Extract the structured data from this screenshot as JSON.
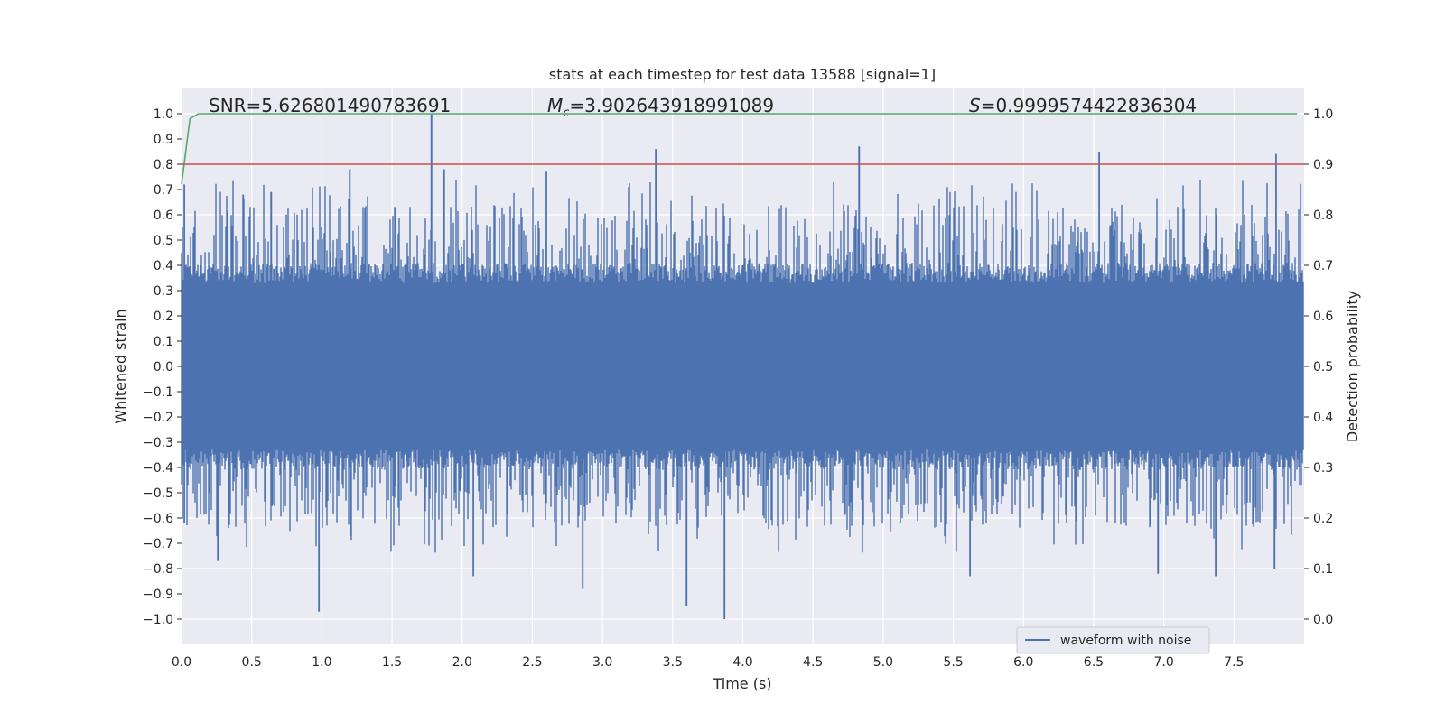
{
  "chart_data": {
    "type": "line",
    "title": "stats at each timestep for test data 13588 [signal=1]",
    "xlabel": "Time (s)",
    "ylabel": "Whitened strain",
    "y2label": "Detection probability",
    "xlim": [
      0.0,
      8.0
    ],
    "ylim": [
      -1.1,
      1.1
    ],
    "y2lim": [
      -0.05,
      1.05
    ],
    "x_ticks": [
      "0.0",
      "0.5",
      "1.0",
      "1.5",
      "2.0",
      "2.5",
      "3.0",
      "3.5",
      "4.0",
      "4.5",
      "5.0",
      "5.5",
      "6.0",
      "6.5",
      "7.0",
      "7.5"
    ],
    "y_ticks": [
      "1.0",
      "0.9",
      "0.8",
      "0.7",
      "0.6",
      "0.5",
      "0.4",
      "0.3",
      "0.2",
      "0.1",
      "0.0",
      "−0.1",
      "−0.2",
      "−0.3",
      "−0.4",
      "−0.5",
      "−0.6",
      "−0.7",
      "−0.8",
      "−0.9",
      "−1.0"
    ],
    "y2_ticks": [
      "1.0",
      "0.9",
      "0.8",
      "0.7",
      "0.6",
      "0.5",
      "0.4",
      "0.3",
      "0.2",
      "0.1",
      "0.0"
    ],
    "grid": true,
    "annotations": {
      "snr": "SNR=5.626801490783691",
      "mc_symbol": "M",
      "mc_sub": "c",
      "mc_value": "=3.902643918991089",
      "s_symbol": "S",
      "s_value": "=0.9999574422836304"
    },
    "legend": {
      "label": "waveform with noise",
      "placement": "lower-right"
    },
    "series": [
      {
        "name": "waveform with noise",
        "axis": "left",
        "color": "#4c72b0",
        "style": "dense noise, envelope about ±0.4",
        "peaks": [
          {
            "t": 0.02,
            "v": 0.72
          },
          {
            "t": 0.02,
            "v": -0.62
          },
          {
            "t": 0.26,
            "v": -0.77
          },
          {
            "t": 0.44,
            "v": 0.68
          },
          {
            "t": 0.64,
            "v": 0.69
          },
          {
            "t": 0.98,
            "v": -0.97
          },
          {
            "t": 1.2,
            "v": 0.78
          },
          {
            "t": 1.78,
            "v": 1.0
          },
          {
            "t": 1.87,
            "v": 0.78
          },
          {
            "t": 2.08,
            "v": -0.83
          },
          {
            "t": 2.6,
            "v": 0.77
          },
          {
            "t": 2.86,
            "v": -0.88
          },
          {
            "t": 3.38,
            "v": 0.86
          },
          {
            "t": 3.6,
            "v": -0.95
          },
          {
            "t": 3.87,
            "v": -1.0
          },
          {
            "t": 4.83,
            "v": 0.87
          },
          {
            "t": 5.62,
            "v": -0.83
          },
          {
            "t": 6.54,
            "v": 0.85
          },
          {
            "t": 6.96,
            "v": -0.82
          },
          {
            "t": 7.37,
            "v": -0.83
          },
          {
            "t": 7.8,
            "v": 0.84
          },
          {
            "t": 7.79,
            "v": -0.8
          }
        ]
      },
      {
        "name": "detection probability",
        "axis": "right",
        "color": "#55a868",
        "points": [
          [
            0.0,
            0.86
          ],
          [
            0.06,
            0.99
          ],
          [
            0.12,
            1.0
          ],
          [
            7.95,
            1.0
          ]
        ]
      },
      {
        "name": "threshold",
        "axis": "right",
        "color": "#c44e52",
        "points": [
          [
            0.0,
            0.9
          ],
          [
            8.0,
            0.9
          ]
        ]
      }
    ]
  }
}
